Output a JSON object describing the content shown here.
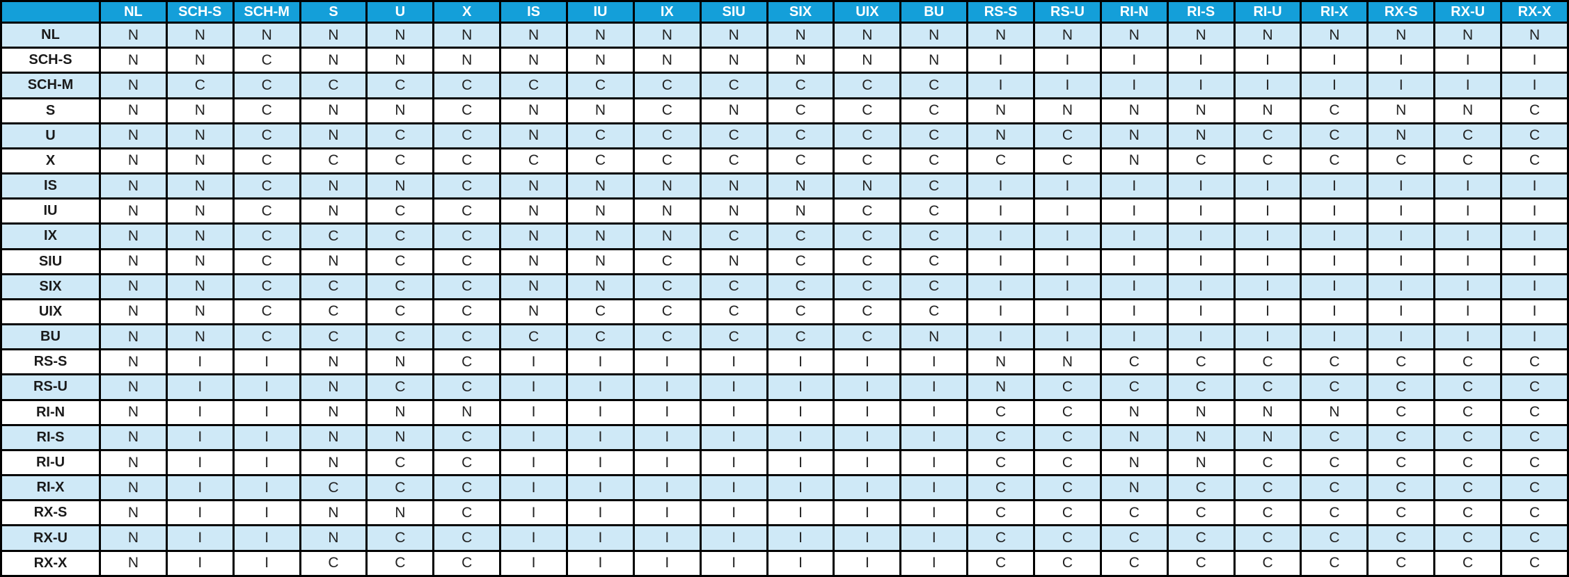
{
  "chart_data": {
    "type": "table",
    "description": "Lock compatibility matrix with row and column lock modes; cell values are N, C or I",
    "corner_label": "",
    "columns": [
      "NL",
      "SCH-S",
      "SCH-M",
      "S",
      "U",
      "X",
      "IS",
      "IU",
      "IX",
      "SIU",
      "SIX",
      "UIX",
      "BU",
      "RS-S",
      "RS-U",
      "RI-N",
      "RI-S",
      "RI-U",
      "RI-X",
      "RX-S",
      "RX-U",
      "RX-X"
    ],
    "rows": [
      {
        "label": "NL",
        "values": [
          "N",
          "N",
          "N",
          "N",
          "N",
          "N",
          "N",
          "N",
          "N",
          "N",
          "N",
          "N",
          "N",
          "N",
          "N",
          "N",
          "N",
          "N",
          "N",
          "N",
          "N",
          "N"
        ]
      },
      {
        "label": "SCH-S",
        "values": [
          "N",
          "N",
          "C",
          "N",
          "N",
          "N",
          "N",
          "N",
          "N",
          "N",
          "N",
          "N",
          "N",
          "I",
          "I",
          "I",
          "I",
          "I",
          "I",
          "I",
          "I",
          "I"
        ]
      },
      {
        "label": "SCH-M",
        "values": [
          "N",
          "C",
          "C",
          "C",
          "C",
          "C",
          "C",
          "C",
          "C",
          "C",
          "C",
          "C",
          "C",
          "I",
          "I",
          "I",
          "I",
          "I",
          "I",
          "I",
          "I",
          "I"
        ]
      },
      {
        "label": "S",
        "values": [
          "N",
          "N",
          "C",
          "N",
          "N",
          "C",
          "N",
          "N",
          "C",
          "N",
          "C",
          "C",
          "C",
          "N",
          "N",
          "N",
          "N",
          "N",
          "C",
          "N",
          "N",
          "C"
        ]
      },
      {
        "label": "U",
        "values": [
          "N",
          "N",
          "C",
          "N",
          "C",
          "C",
          "N",
          "C",
          "C",
          "C",
          "C",
          "C",
          "C",
          "N",
          "C",
          "N",
          "N",
          "C",
          "C",
          "N",
          "C",
          "C"
        ]
      },
      {
        "label": "X",
        "values": [
          "N",
          "N",
          "C",
          "C",
          "C",
          "C",
          "C",
          "C",
          "C",
          "C",
          "C",
          "C",
          "C",
          "C",
          "C",
          "N",
          "C",
          "C",
          "C",
          "C",
          "C",
          "C"
        ]
      },
      {
        "label": "IS",
        "values": [
          "N",
          "N",
          "C",
          "N",
          "N",
          "C",
          "N",
          "N",
          "N",
          "N",
          "N",
          "N",
          "C",
          "I",
          "I",
          "I",
          "I",
          "I",
          "I",
          "I",
          "I",
          "I"
        ]
      },
      {
        "label": "IU",
        "values": [
          "N",
          "N",
          "C",
          "N",
          "C",
          "C",
          "N",
          "N",
          "N",
          "N",
          "N",
          "C",
          "C",
          "I",
          "I",
          "I",
          "I",
          "I",
          "I",
          "I",
          "I",
          "I"
        ]
      },
      {
        "label": "IX",
        "values": [
          "N",
          "N",
          "C",
          "C",
          "C",
          "C",
          "N",
          "N",
          "N",
          "C",
          "C",
          "C",
          "C",
          "I",
          "I",
          "I",
          "I",
          "I",
          "I",
          "I",
          "I",
          "I"
        ]
      },
      {
        "label": "SIU",
        "values": [
          "N",
          "N",
          "C",
          "N",
          "C",
          "C",
          "N",
          "N",
          "C",
          "N",
          "C",
          "C",
          "C",
          "I",
          "I",
          "I",
          "I",
          "I",
          "I",
          "I",
          "I",
          "I"
        ]
      },
      {
        "label": "SIX",
        "values": [
          "N",
          "N",
          "C",
          "C",
          "C",
          "C",
          "N",
          "N",
          "C",
          "C",
          "C",
          "C",
          "C",
          "I",
          "I",
          "I",
          "I",
          "I",
          "I",
          "I",
          "I",
          "I"
        ]
      },
      {
        "label": "UIX",
        "values": [
          "N",
          "N",
          "C",
          "C",
          "C",
          "C",
          "N",
          "C",
          "C",
          "C",
          "C",
          "C",
          "C",
          "I",
          "I",
          "I",
          "I",
          "I",
          "I",
          "I",
          "I",
          "I"
        ]
      },
      {
        "label": "BU",
        "values": [
          "N",
          "N",
          "C",
          "C",
          "C",
          "C",
          "C",
          "C",
          "C",
          "C",
          "C",
          "C",
          "N",
          "I",
          "I",
          "I",
          "I",
          "I",
          "I",
          "I",
          "I",
          "I"
        ]
      },
      {
        "label": "RS-S",
        "values": [
          "N",
          "I",
          "I",
          "N",
          "N",
          "C",
          "I",
          "I",
          "I",
          "I",
          "I",
          "I",
          "I",
          "N",
          "N",
          "C",
          "C",
          "C",
          "C",
          "C",
          "C",
          "C"
        ]
      },
      {
        "label": "RS-U",
        "values": [
          "N",
          "I",
          "I",
          "N",
          "C",
          "C",
          "I",
          "I",
          "I",
          "I",
          "I",
          "I",
          "I",
          "N",
          "C",
          "C",
          "C",
          "C",
          "C",
          "C",
          "C",
          "C"
        ]
      },
      {
        "label": "RI-N",
        "values": [
          "N",
          "I",
          "I",
          "N",
          "N",
          "N",
          "I",
          "I",
          "I",
          "I",
          "I",
          "I",
          "I",
          "C",
          "C",
          "N",
          "N",
          "N",
          "N",
          "C",
          "C",
          "C"
        ]
      },
      {
        "label": "RI-S",
        "values": [
          "N",
          "I",
          "I",
          "N",
          "N",
          "C",
          "I",
          "I",
          "I",
          "I",
          "I",
          "I",
          "I",
          "C",
          "C",
          "N",
          "N",
          "N",
          "C",
          "C",
          "C",
          "C"
        ]
      },
      {
        "label": "RI-U",
        "values": [
          "N",
          "I",
          "I",
          "N",
          "C",
          "C",
          "I",
          "I",
          "I",
          "I",
          "I",
          "I",
          "I",
          "C",
          "C",
          "N",
          "N",
          "C",
          "C",
          "C",
          "C",
          "C"
        ]
      },
      {
        "label": "RI-X",
        "values": [
          "N",
          "I",
          "I",
          "C",
          "C",
          "C",
          "I",
          "I",
          "I",
          "I",
          "I",
          "I",
          "I",
          "C",
          "C",
          "N",
          "C",
          "C",
          "C",
          "C",
          "C",
          "C"
        ]
      },
      {
        "label": "RX-S",
        "values": [
          "N",
          "I",
          "I",
          "N",
          "N",
          "C",
          "I",
          "I",
          "I",
          "I",
          "I",
          "I",
          "I",
          "C",
          "C",
          "C",
          "C",
          "C",
          "C",
          "C",
          "C",
          "C"
        ]
      },
      {
        "label": "RX-U",
        "values": [
          "N",
          "I",
          "I",
          "N",
          "C",
          "C",
          "I",
          "I",
          "I",
          "I",
          "I",
          "I",
          "I",
          "C",
          "C",
          "C",
          "C",
          "C",
          "C",
          "C",
          "C",
          "C"
        ]
      },
      {
        "label": "RX-X",
        "values": [
          "N",
          "I",
          "I",
          "C",
          "C",
          "C",
          "I",
          "I",
          "I",
          "I",
          "I",
          "I",
          "I",
          "C",
          "C",
          "C",
          "C",
          "C",
          "C",
          "C",
          "C",
          "C"
        ]
      }
    ]
  },
  "colors": {
    "header_bg": "#149fd9",
    "row_odd_bg": "#cfe9f7",
    "row_even_bg": "#ffffff",
    "border": "#000000",
    "header_text": "#ffffff",
    "label_text": "#1a1a1a",
    "value_text": "#222222"
  }
}
